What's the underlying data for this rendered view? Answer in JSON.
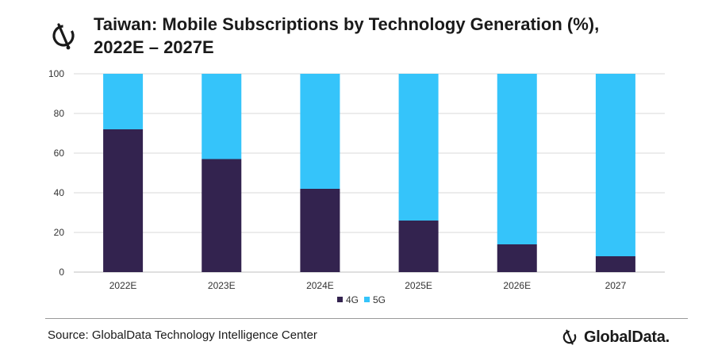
{
  "title": "Taiwan: Mobile Subscriptions by Technology Generation (%), 2022E – 2027E",
  "source": "Source: GlobalData Technology Intelligence Center",
  "brand": "GlobalData.",
  "chart_data": {
    "type": "bar",
    "stacked": true,
    "title": "Taiwan: Mobile Subscriptions by Technology Generation (%), 2022E – 2027E",
    "categories": [
      "2022E",
      "2023E",
      "2024E",
      "2025E",
      "2026E",
      "2027"
    ],
    "series": [
      {
        "name": "4G",
        "color": "#33234f",
        "values": [
          72,
          57,
          42,
          26,
          14,
          8
        ]
      },
      {
        "name": "5G",
        "color": "#35c4fa",
        "values": [
          28,
          43,
          58,
          74,
          86,
          92
        ]
      }
    ],
    "ylim": [
      0,
      100
    ],
    "yticks": [
      0,
      20,
      40,
      60,
      80,
      100
    ],
    "xlabel": "",
    "ylabel": "",
    "grid": true,
    "legend": "bottom-center"
  }
}
